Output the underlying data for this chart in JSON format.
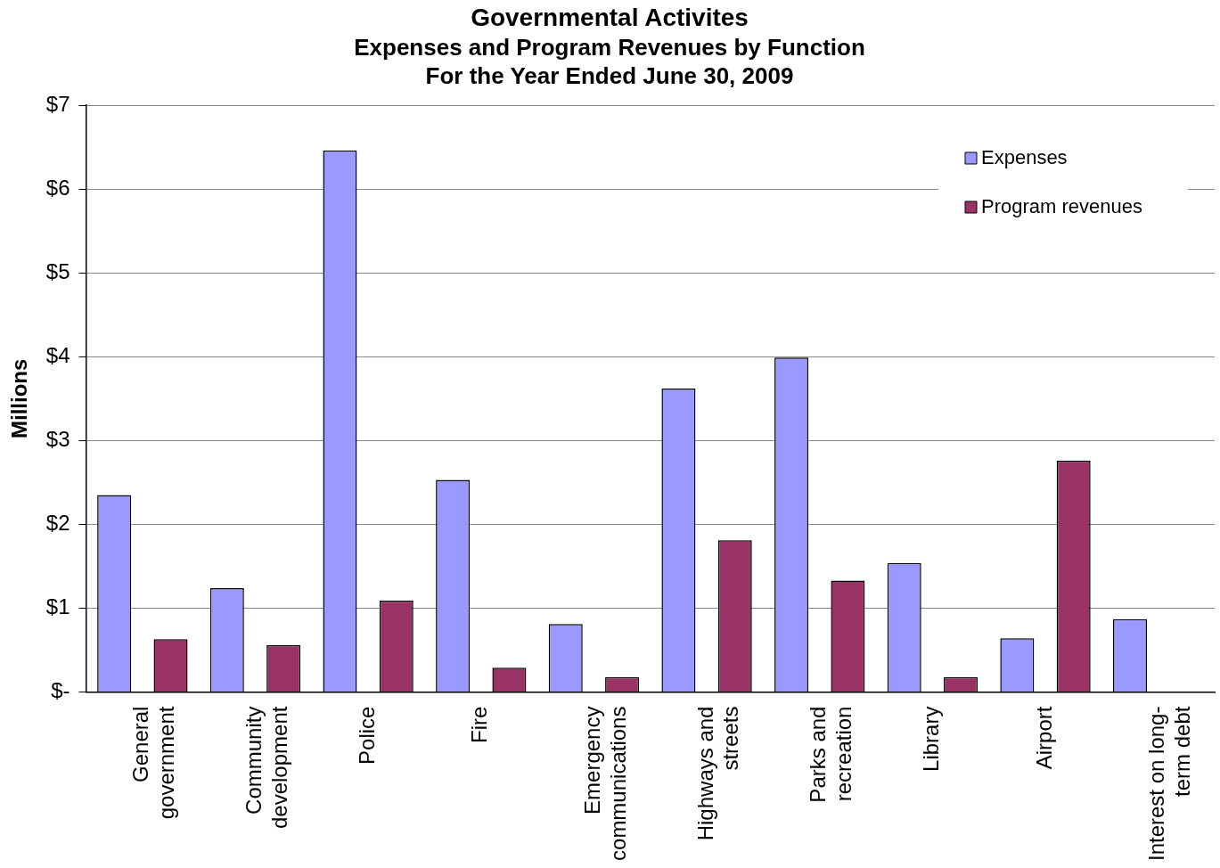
{
  "chart_data": {
    "type": "bar",
    "title": "Governmental Activites",
    "subtitle": "Expenses and Program Revenues by Function\nFor the Year Ended June 30, 2009",
    "ylabel": "Millions",
    "categories": [
      "General government",
      "Community development",
      "Police",
      "Fire",
      "Emergency communications",
      "Highways and streets",
      "Parks and recreation",
      "Library",
      "Airport",
      "Interest on long-term debt"
    ],
    "series": [
      {
        "name": "Expenses",
        "color": "#9999ff",
        "values": [
          2.35,
          1.24,
          6.46,
          2.53,
          0.81,
          3.62,
          3.99,
          1.54,
          0.64,
          0.87
        ]
      },
      {
        "name": "Program revenues",
        "color": "#993366",
        "values": [
          0.63,
          0.56,
          1.09,
          0.29,
          0.18,
          1.81,
          1.33,
          0.18,
          2.76,
          null
        ]
      }
    ],
    "ylim": [
      0,
      7
    ],
    "yticks": [
      {
        "value": 0,
        "label": "$-"
      },
      {
        "value": 1,
        "label": "$1"
      },
      {
        "value": 2,
        "label": "$2"
      },
      {
        "value": 3,
        "label": "$3"
      },
      {
        "value": 4,
        "label": "$4"
      },
      {
        "value": 5,
        "label": "$5"
      },
      {
        "value": 6,
        "label": "$6"
      },
      {
        "value": 7,
        "label": "$7"
      }
    ],
    "grid": "y",
    "legend": "top right"
  }
}
